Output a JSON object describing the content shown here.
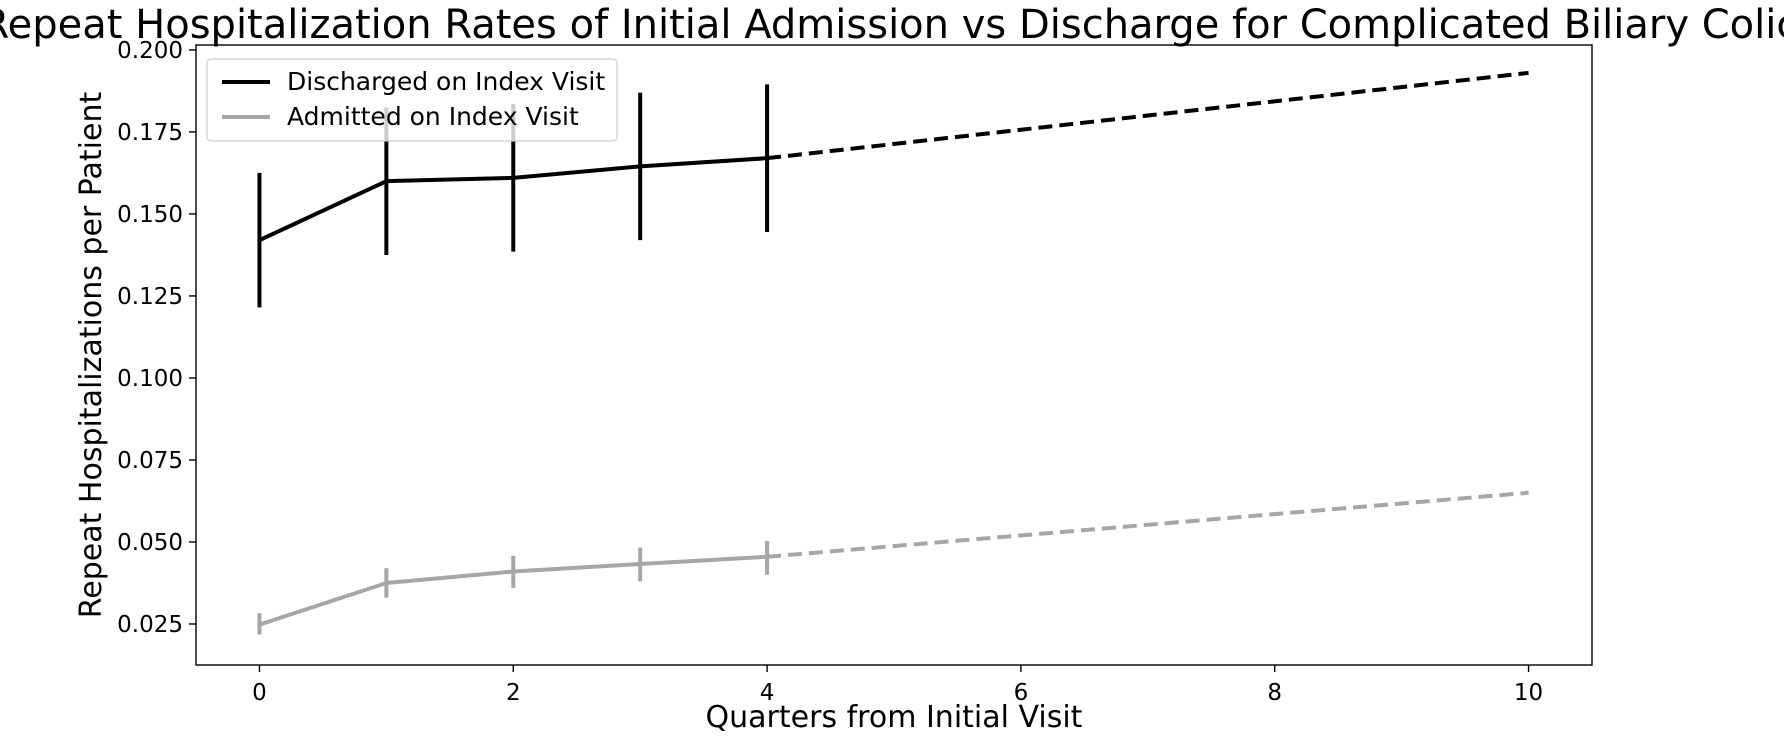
{
  "chart_data": {
    "type": "line",
    "title": "Repeat Hospitalization Rates of Initial Admission vs Discharge for Complicated Biliary Colic",
    "xlabel": "Quarters from Initial Visit",
    "ylabel": "Repeat Hospitalizations per Patient",
    "xlim": [
      -0.5,
      10.5
    ],
    "ylim": [
      0.0125,
      0.2015
    ],
    "xticks": [
      0,
      2,
      4,
      6,
      8,
      10
    ],
    "xtick_labels": [
      "0",
      "2",
      "4",
      "6",
      "8",
      "10"
    ],
    "yticks": [
      0.025,
      0.05,
      0.075,
      0.1,
      0.125,
      0.15,
      0.175,
      0.2
    ],
    "ytick_labels": [
      "0.025",
      "0.050",
      "0.075",
      "0.100",
      "0.125",
      "0.150",
      "0.175",
      "0.200"
    ],
    "grid": false,
    "legend_position": "upper-left",
    "series": [
      {
        "name": "Discharged on Index Visit",
        "color": "#000000",
        "observed": {
          "x": [
            0,
            1,
            2,
            3,
            4
          ],
          "y": [
            0.142,
            0.16,
            0.161,
            0.1645,
            0.167
          ],
          "error_low": [
            0.1215,
            0.1375,
            0.1385,
            0.142,
            0.1445
          ],
          "error_high": [
            0.1625,
            0.1825,
            0.1835,
            0.187,
            0.1895
          ]
        },
        "projected": {
          "line_style": "dashed",
          "x": [
            4,
            10
          ],
          "y": [
            0.167,
            0.193
          ]
        }
      },
      {
        "name": "Admitted on Index Visit",
        "color": "#a6a6a6",
        "observed": {
          "x": [
            0,
            1,
            2,
            3,
            4
          ],
          "y": [
            0.0248,
            0.0375,
            0.041,
            0.0433,
            0.0455
          ],
          "error_low": [
            0.0218,
            0.033,
            0.036,
            0.038,
            0.04
          ],
          "error_high": [
            0.0283,
            0.042,
            0.0458,
            0.0483,
            0.0503
          ]
        },
        "projected": {
          "line_style": "dashed",
          "x": [
            4,
            10
          ],
          "y": [
            0.0455,
            0.065
          ]
        }
      }
    ]
  }
}
